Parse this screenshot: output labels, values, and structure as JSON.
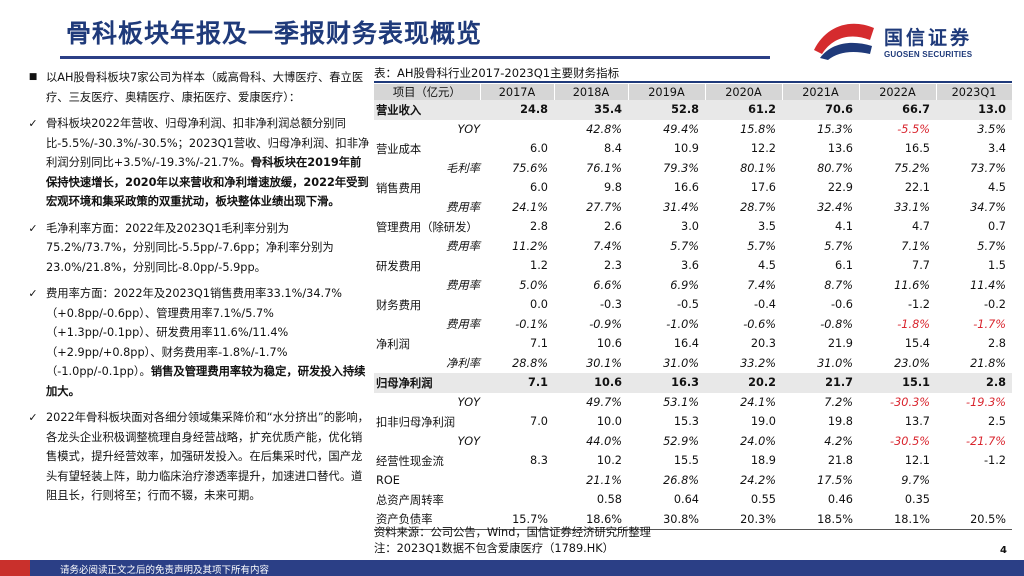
{
  "header": {
    "title": "骨科板块年报及一季报财务表现概览"
  },
  "logo": {
    "cn": "国信证券",
    "en": "GUOSEN SECURITIES",
    "colors": {
      "red": "#d52b2e",
      "navy": "#1f3a7a"
    }
  },
  "bullets": [
    {
      "marker": "■",
      "segments": [
        {
          "text": "以AH股骨科板块7家公司为样本（威高骨科、大博医疗、春立医疗、三友医疗、奥精医疗、康拓医疗、爱康医疗）：",
          "bold": false
        }
      ]
    },
    {
      "marker": "✓",
      "segments": [
        {
          "text": "骨科板块2022年营收、归母净利润、扣非净利润总额分别同比-5.5%/-30.3%/-30.5%；2023Q1营收、归母净利润、扣非净利润分别同比+3.5%/-19.3%/-21.7%。",
          "bold": false
        },
        {
          "text": "骨科板块在2019年前保持快速增长，2020年以来营收和净利增速放缓，2022年受到宏观环境和集采政策的双重扰动，板块整体业绩出现下滑。",
          "bold": true
        }
      ]
    },
    {
      "marker": "✓",
      "segments": [
        {
          "text": "毛净利率方面：2022年及2023Q1毛利率分别为75.2%/73.7%，分别同比-5.5pp/-7.6pp；净利率分别为23.0%/21.8%，分别同比-8.0pp/-5.9pp。",
          "bold": false
        }
      ]
    },
    {
      "marker": "✓",
      "segments": [
        {
          "text": "费用率方面：2022年及2023Q1销售费用率33.1%/34.7%（+0.8pp/-0.6pp）、管理费用率7.1%/5.7%（+1.3pp/-0.1pp）、研发费用率11.6%/11.4%（+2.9pp/+0.8pp）、财务费用率-1.8%/-1.7%（-1.0pp/-0.1pp）。",
          "bold": false
        },
        {
          "text": "销售及管理费用率较为稳定，研发投入持续加大。",
          "bold": true
        }
      ]
    },
    {
      "marker": "✓",
      "segments": [
        {
          "text": "2022年骨科板块面对各细分领域集采降价和“水分挤出”的影响，各龙头企业积极调整梳理自身经营战略，扩充优质产能，优化销售模式，提升经营效率，加强研发投入。在后集采时代，国产龙头有望轻装上阵，助力临床治疗渗透率提升，加速进口替代。道阻且长，行则将至；行而不辍，未来可期。",
          "bold": false
        }
      ]
    }
  ],
  "table": {
    "title": "表：AH股骨科行业2017-2023Q1主要财务指标",
    "headers": [
      "项目（亿元）",
      "2017A",
      "2018A",
      "2019A",
      "2020A",
      "2021A",
      "2022A",
      "2023Q1"
    ],
    "rows": [
      {
        "label": "营业收入",
        "values": [
          "24.8",
          "35.4",
          "52.8",
          "61.2",
          "70.6",
          "66.7",
          "13.0"
        ],
        "highlight": true,
        "sub": false,
        "pct": false
      },
      {
        "label": "YOY",
        "values": [
          "",
          "42.8%",
          "49.4%",
          "15.8%",
          "15.3%",
          "-5.5%",
          "3.5%"
        ],
        "highlight": false,
        "sub": true,
        "pct": true
      },
      {
        "label": "营业成本",
        "values": [
          "6.0",
          "8.4",
          "10.9",
          "12.2",
          "13.6",
          "16.5",
          "3.4"
        ],
        "highlight": false,
        "sub": false,
        "pct": false
      },
      {
        "label": "毛利率",
        "values": [
          "75.6%",
          "76.1%",
          "79.3%",
          "80.1%",
          "80.7%",
          "75.2%",
          "73.7%"
        ],
        "highlight": false,
        "sub": true,
        "pct": true
      },
      {
        "label": "销售费用",
        "values": [
          "6.0",
          "9.8",
          "16.6",
          "17.6",
          "22.9",
          "22.1",
          "4.5"
        ],
        "highlight": false,
        "sub": false,
        "pct": false
      },
      {
        "label": "费用率",
        "values": [
          "24.1%",
          "27.7%",
          "31.4%",
          "28.7%",
          "32.4%",
          "33.1%",
          "34.7%"
        ],
        "highlight": false,
        "sub": true,
        "pct": true
      },
      {
        "label": "管理费用（除研发）",
        "values": [
          "2.8",
          "2.6",
          "3.0",
          "3.5",
          "4.1",
          "4.7",
          "0.7"
        ],
        "highlight": false,
        "sub": false,
        "pct": false
      },
      {
        "label": "费用率",
        "values": [
          "11.2%",
          "7.4%",
          "5.7%",
          "5.7%",
          "5.7%",
          "7.1%",
          "5.7%"
        ],
        "highlight": false,
        "sub": true,
        "pct": true
      },
      {
        "label": "研发费用",
        "values": [
          "1.2",
          "2.3",
          "3.6",
          "4.5",
          "6.1",
          "7.7",
          "1.5"
        ],
        "highlight": false,
        "sub": false,
        "pct": false
      },
      {
        "label": "费用率",
        "values": [
          "5.0%",
          "6.6%",
          "6.9%",
          "7.4%",
          "8.7%",
          "11.6%",
          "11.4%"
        ],
        "highlight": false,
        "sub": true,
        "pct": true
      },
      {
        "label": "财务费用",
        "values": [
          "0.0",
          "-0.3",
          "-0.5",
          "-0.4",
          "-0.6",
          "-1.2",
          "-0.2"
        ],
        "highlight": false,
        "sub": false,
        "pct": false
      },
      {
        "label": "费用率",
        "values": [
          "-0.1%",
          "-0.9%",
          "-1.0%",
          "-0.6%",
          "-0.8%",
          "-1.8%",
          "-1.7%"
        ],
        "highlight": false,
        "sub": true,
        "pct": true
      },
      {
        "label": "净利润",
        "values": [
          "7.1",
          "10.6",
          "16.4",
          "20.3",
          "21.9",
          "15.4",
          "2.8"
        ],
        "highlight": false,
        "sub": false,
        "pct": false
      },
      {
        "label": "净利率",
        "values": [
          "28.8%",
          "30.1%",
          "31.0%",
          "33.2%",
          "31.0%",
          "23.0%",
          "21.8%"
        ],
        "highlight": false,
        "sub": true,
        "pct": true
      },
      {
        "label": "归母净利润",
        "values": [
          "7.1",
          "10.6",
          "16.3",
          "20.2",
          "21.7",
          "15.1",
          "2.8"
        ],
        "highlight": true,
        "sub": false,
        "pct": false
      },
      {
        "label": "YOY",
        "values": [
          "",
          "49.7%",
          "53.1%",
          "24.1%",
          "7.2%",
          "-30.3%",
          "-19.3%"
        ],
        "highlight": false,
        "sub": true,
        "pct": true
      },
      {
        "label": "扣非归母净利润",
        "values": [
          "7.0",
          "10.0",
          "15.3",
          "19.0",
          "19.8",
          "13.7",
          "2.5"
        ],
        "highlight": false,
        "sub": false,
        "pct": false
      },
      {
        "label": "YOY",
        "values": [
          "",
          "44.0%",
          "52.9%",
          "24.0%",
          "4.2%",
          "-30.5%",
          "-21.7%"
        ],
        "highlight": false,
        "sub": true,
        "pct": true
      },
      {
        "label": "经营性现金流",
        "values": [
          "8.3",
          "10.2",
          "15.5",
          "18.9",
          "21.8",
          "12.1",
          "-1.2"
        ],
        "highlight": false,
        "sub": false,
        "pct": false
      },
      {
        "label": "ROE",
        "values": [
          "",
          "21.1%",
          "26.8%",
          "24.2%",
          "17.5%",
          "9.7%",
          ""
        ],
        "highlight": false,
        "sub": false,
        "pct": true
      },
      {
        "label": "总资产周转率",
        "values": [
          "",
          "0.58",
          "0.64",
          "0.55",
          "0.46",
          "0.35",
          ""
        ],
        "highlight": false,
        "sub": false,
        "pct": false
      },
      {
        "label": "资产负债率",
        "values": [
          "15.7%",
          "18.6%",
          "30.8%",
          "20.3%",
          "18.5%",
          "18.1%",
          "20.5%"
        ],
        "highlight": false,
        "sub": false,
        "pct": false
      }
    ],
    "negative_color": "#d9252e"
  },
  "source": {
    "line1": "资料来源：公司公告，Wind，国信证券经济研究所整理",
    "line2": "注：2023Q1数据不包含爱康医疗（1789.HK）"
  },
  "page_number": "4",
  "footer": {
    "text": "请务必阅读正文之后的免责声明及其项下所有内容",
    "color": "#2b3f86"
  }
}
